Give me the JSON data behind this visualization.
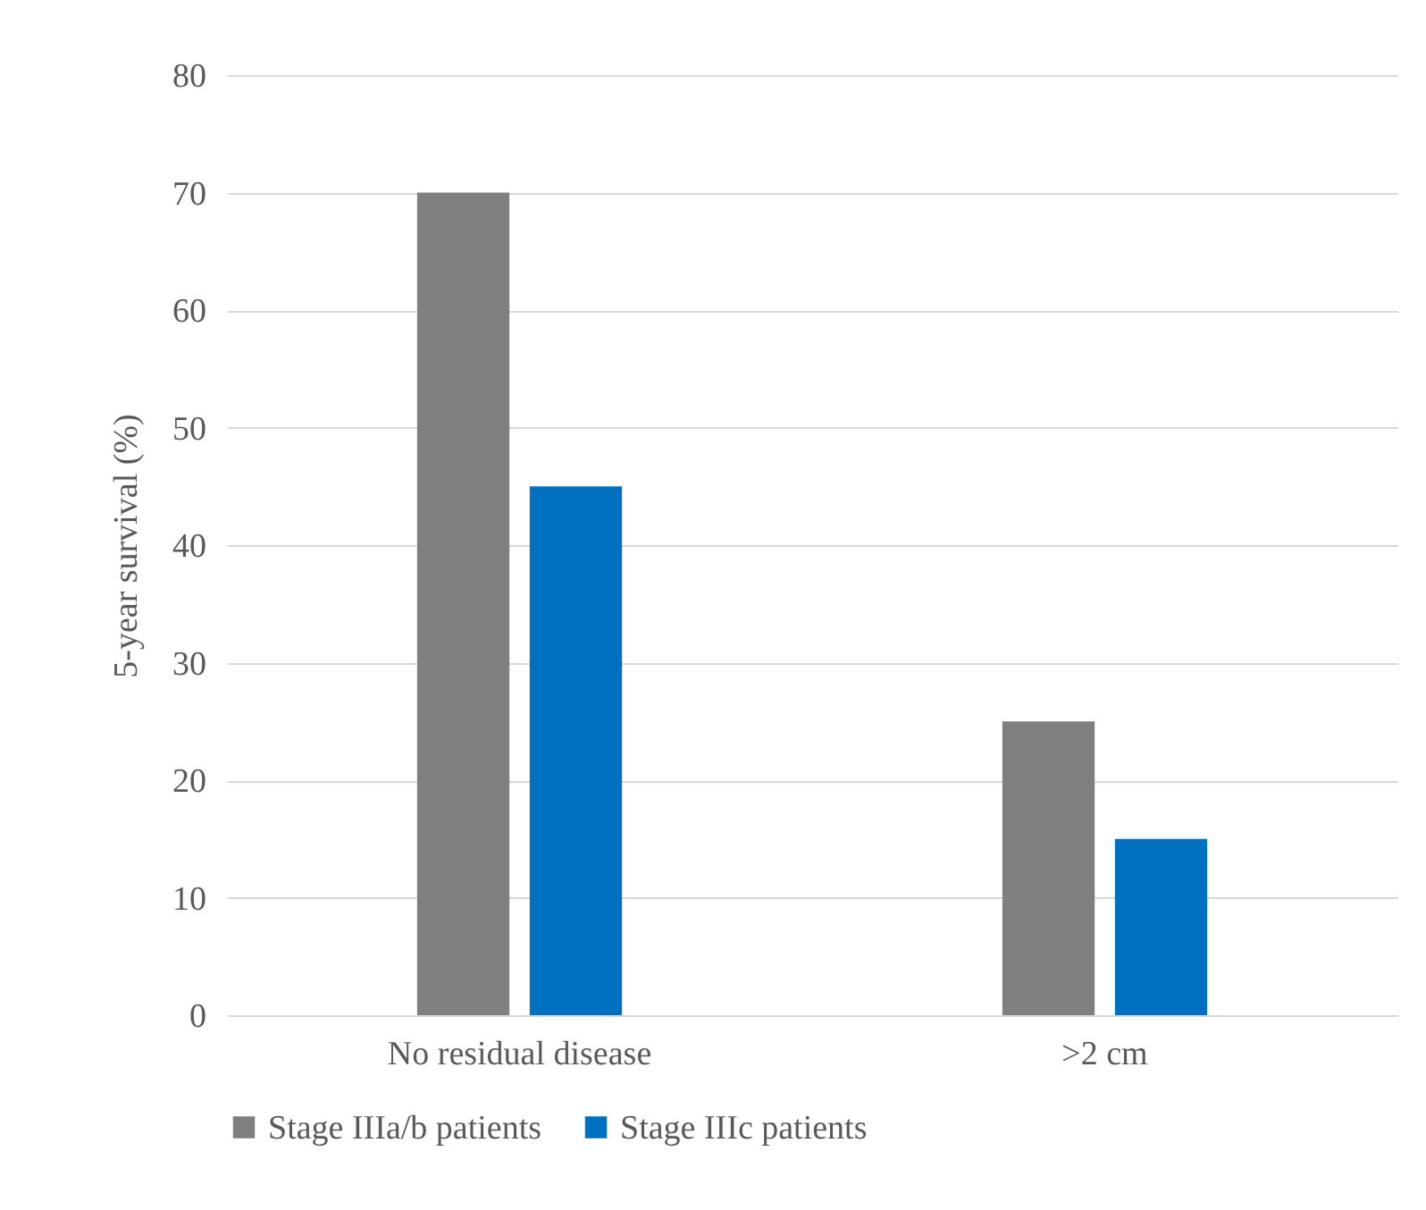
{
  "chart_data": {
    "type": "bar",
    "ylabel": "5-year survival (%)",
    "categories": [
      "No residual disease",
      ">2 cm"
    ],
    "series": [
      {
        "name": "Stage IIIa/b patients",
        "color": "#7f7f7f",
        "values": [
          70,
          25
        ]
      },
      {
        "name": "Stage IIIc patients",
        "color": "#0070c0",
        "values": [
          45,
          15
        ]
      }
    ],
    "ylim": [
      0,
      80
    ],
    "yticks": [
      0,
      10,
      20,
      30,
      40,
      50,
      60,
      70,
      80
    ],
    "grid": "y",
    "legend": "bottom"
  }
}
